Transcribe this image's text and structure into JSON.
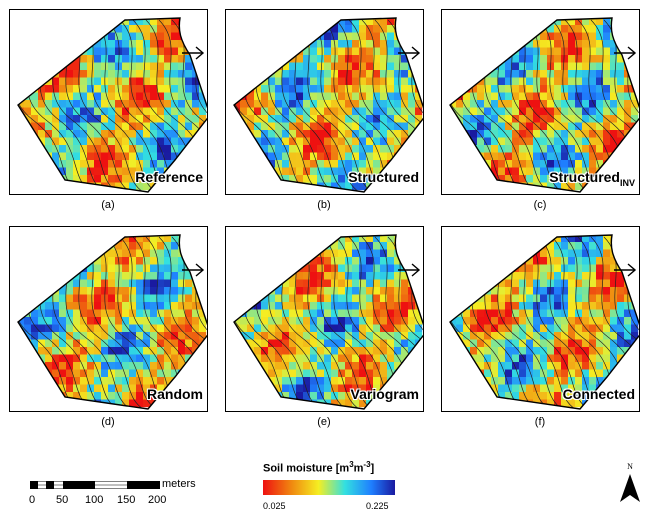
{
  "panels": [
    {
      "id": "a",
      "caption": "(a)",
      "label": "Reference",
      "sub": ""
    },
    {
      "id": "b",
      "caption": "(b)",
      "label": "Structured",
      "sub": ""
    },
    {
      "id": "c",
      "caption": "(c)",
      "label": "Structured",
      "sub": "INV"
    },
    {
      "id": "d",
      "caption": "(d)",
      "label": "Random",
      "sub": ""
    },
    {
      "id": "e",
      "caption": "(e)",
      "label": "Variogram",
      "sub": ""
    },
    {
      "id": "f",
      "caption": "(f)",
      "label": "Connected",
      "sub": ""
    }
  ],
  "legend": {
    "title_main": "Soil moisture [m",
    "title_sup1": "3",
    "title_mid": "m",
    "title_sup2": "-3",
    "title_end": "]",
    "min": "0.025",
    "max": "0.225",
    "colors": [
      "#ee1111",
      "#f08a10",
      "#f5ee22",
      "#33e0e0",
      "#1f7fff",
      "#1a1aa0"
    ]
  },
  "scale_bar": {
    "unit": "meters",
    "ticks": [
      "0",
      "50",
      "100",
      "150",
      "200"
    ]
  },
  "north": {
    "letter": "N"
  }
}
